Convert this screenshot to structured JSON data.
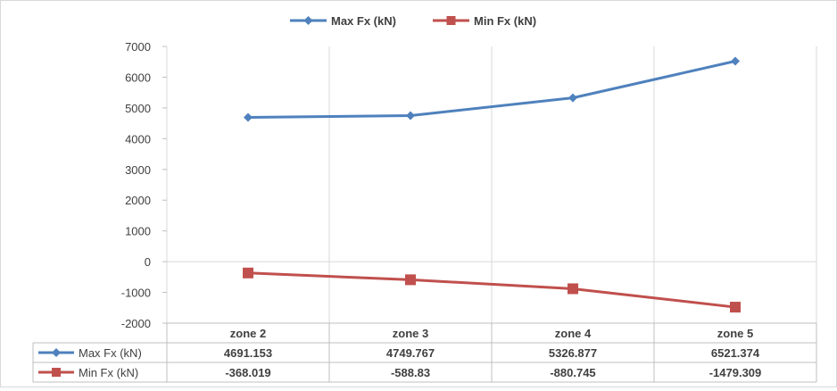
{
  "chart_data": {
    "type": "line",
    "categories": [
      "zone 2",
      "zone 3",
      "zone 4",
      "zone 5"
    ],
    "series": [
      {
        "name": "Max Fx (kN)",
        "values": [
          4691.153,
          4749.767,
          5326.877,
          6521.374
        ],
        "labels": [
          "4691.153",
          "4749.767",
          "5326.877",
          "6521.374"
        ],
        "color": "#4f81bd",
        "marker": "diamond"
      },
      {
        "name": "Min Fx (kN)",
        "values": [
          -368.019,
          -588.83,
          -880.745,
          -1479.309
        ],
        "labels": [
          "-368.019",
          "-588.83",
          "-880.745",
          "-1479.309"
        ],
        "color": "#c0504d",
        "marker": "square"
      }
    ],
    "yticks": [
      "7000",
      "6000",
      "5000",
      "4000",
      "3000",
      "2000",
      "1000",
      "0",
      "-1000",
      "-2000"
    ],
    "ylim": [
      -2000,
      7000
    ],
    "ystep": 1000,
    "legend_position": "top",
    "data_table": true,
    "gridlines": "vertical category dividers",
    "title": "",
    "xlabel": "",
    "ylabel": ""
  }
}
